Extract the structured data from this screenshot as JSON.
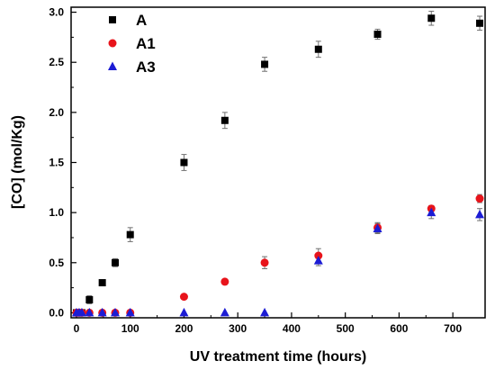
{
  "chart_data": {
    "type": "scatter",
    "xlabel": "UV treatment time (hours)",
    "ylabel": "[CO] (mol/Kg)",
    "xlim": [
      -10,
      760
    ],
    "ylim": [
      -0.05,
      3.05
    ],
    "x_ticks": [
      0,
      100,
      200,
      300,
      400,
      500,
      600,
      700
    ],
    "y_ticks": [
      0.0,
      0.5,
      1.0,
      1.5,
      2.0,
      2.5,
      3.0
    ],
    "y_tick_labels": [
      "0.0",
      "0.5",
      "1.0",
      "1.5",
      "2.0",
      "2.5",
      "3.0"
    ],
    "grid": false,
    "legend_position": "top-left",
    "series": [
      {
        "name": "A",
        "marker": "square",
        "color": "#000000",
        "x": [
          0,
          5,
          10,
          24,
          48,
          72,
          100,
          200,
          276,
          350,
          450,
          560,
          660,
          750
        ],
        "y": [
          0.0,
          0.0,
          0.0,
          0.13,
          0.3,
          0.5,
          0.78,
          1.5,
          1.92,
          2.48,
          2.63,
          2.78,
          2.94,
          2.89
        ],
        "err": [
          0.02,
          0.02,
          0.02,
          0.04,
          0.02,
          0.04,
          0.07,
          0.08,
          0.08,
          0.07,
          0.08,
          0.05,
          0.07,
          0.07
        ]
      },
      {
        "name": "A1",
        "marker": "circle",
        "color": "#e8141b",
        "x": [
          0,
          5,
          10,
          24,
          48,
          72,
          100,
          200,
          276,
          350,
          450,
          560,
          660,
          750
        ],
        "y": [
          0.0,
          0.0,
          0.0,
          0.0,
          0.0,
          0.0,
          0.0,
          0.16,
          0.31,
          0.5,
          0.57,
          0.85,
          1.04,
          1.14
        ],
        "err": [
          0.0,
          0.0,
          0.0,
          0.0,
          0.0,
          0.0,
          0.0,
          0.0,
          0.02,
          0.06,
          0.07,
          0.05,
          0.03,
          0.04
        ]
      },
      {
        "name": "A3",
        "marker": "triangle",
        "color": "#1c1cd4",
        "x": [
          0,
          5,
          10,
          24,
          48,
          72,
          100,
          200,
          276,
          350,
          450,
          560,
          660,
          750
        ],
        "y": [
          0.0,
          0.0,
          0.0,
          0.0,
          0.0,
          0.0,
          0.0,
          0.0,
          0.0,
          0.0,
          0.52,
          0.84,
          1.0,
          0.98
        ],
        "err": [
          0.0,
          0.0,
          0.0,
          0.0,
          0.0,
          0.0,
          0.0,
          0.0,
          0.0,
          0.0,
          0.05,
          0.05,
          0.06,
          0.06
        ]
      }
    ]
  }
}
